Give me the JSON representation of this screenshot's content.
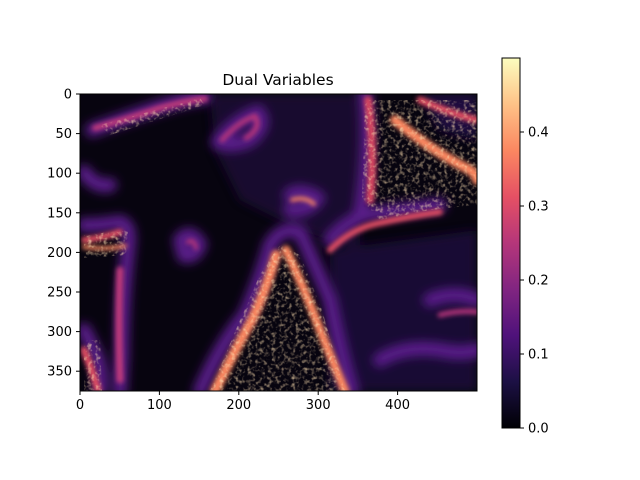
{
  "chart_data": {
    "type": "heatmap",
    "title": "Dual Variables",
    "xlabel": "",
    "ylabel": "",
    "colormap": "magma",
    "image_width": 500,
    "image_height": 375,
    "xlim": [
      0,
      500
    ],
    "ylim": [
      375,
      0
    ],
    "x_ticks": [
      0,
      100,
      200,
      300,
      400
    ],
    "y_ticks": [
      0,
      50,
      100,
      150,
      200,
      250,
      300,
      350
    ],
    "colorbar": {
      "min": 0.0,
      "max": 0.5,
      "ticks": [
        "0.0",
        "0.1",
        "0.2",
        "0.3",
        "0.4"
      ],
      "tick_values": [
        0.0,
        0.1,
        0.2,
        0.3,
        0.4
      ]
    },
    "grid": false,
    "regions": [
      {
        "name": "top-left-band",
        "level": 0.25
      },
      {
        "name": "top-left-ring",
        "level": 0.2
      },
      {
        "name": "left-edge-region",
        "level": 0.3
      },
      {
        "name": "lower-left-region",
        "level": 0.32
      },
      {
        "name": "central-mountain-region",
        "level": 0.35
      },
      {
        "name": "upper-right-region",
        "level": 0.38
      },
      {
        "name": "right-lower-region",
        "level": 0.15
      },
      {
        "name": "dark-left-sky",
        "level": 0.02
      }
    ]
  },
  "colors": {
    "axis": "#000000",
    "background": "#ffffff"
  }
}
